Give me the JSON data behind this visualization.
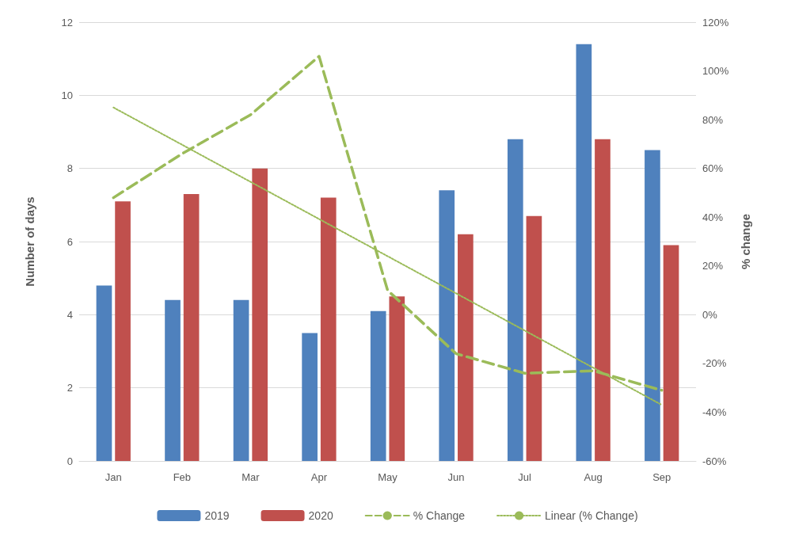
{
  "chart_data": {
    "type": "bar",
    "ylabel": "Number of days",
    "y2label": "% change",
    "categories": [
      "Jan",
      "Feb",
      "Mar",
      "Apr",
      "May",
      "Jun",
      "Jul",
      "Aug",
      "Sep"
    ],
    "series": [
      {
        "name": "2019",
        "color": "#4f81bd",
        "values": [
          4.8,
          4.4,
          4.4,
          3.5,
          4.1,
          7.4,
          8.8,
          11.4,
          8.5
        ]
      },
      {
        "name": "2020",
        "color": "#c0504d",
        "values": [
          7.1,
          7.3,
          8.0,
          7.2,
          4.5,
          6.2,
          6.7,
          8.8,
          5.9
        ]
      },
      {
        "name": "% Change",
        "type": "line",
        "axis": "y2",
        "color": "#9bbb59",
        "line_style": "dashed",
        "values": [
          48,
          66,
          82,
          106,
          10,
          -16,
          -24,
          -23,
          -31
        ]
      },
      {
        "name": "Linear (% Change)",
        "type": "line",
        "axis": "y2",
        "color": "#9bbb59",
        "line_style": "dotted",
        "x": [
          "Jan",
          "Sep"
        ],
        "values": [
          85,
          -37
        ]
      }
    ],
    "ylim": [
      0,
      12
    ],
    "yticks": [
      0,
      2,
      4,
      6,
      8,
      10,
      12
    ],
    "y2lim": [
      -60,
      120
    ],
    "y2ticks": [
      {
        "value": -60,
        "label": "-60%"
      },
      {
        "value": -40,
        "label": "-40%"
      },
      {
        "value": -20,
        "label": "-20%"
      },
      {
        "value": 0,
        "label": "0%"
      },
      {
        "value": 20,
        "label": "20%"
      },
      {
        "value": 40,
        "label": "40%"
      },
      {
        "value": 60,
        "label": "60%"
      },
      {
        "value": 80,
        "label": "80%"
      },
      {
        "value": 100,
        "label": "100%"
      },
      {
        "value": 120,
        "label": "120%"
      }
    ],
    "grid": "y",
    "legend": "bottom",
    "marker": "none"
  }
}
